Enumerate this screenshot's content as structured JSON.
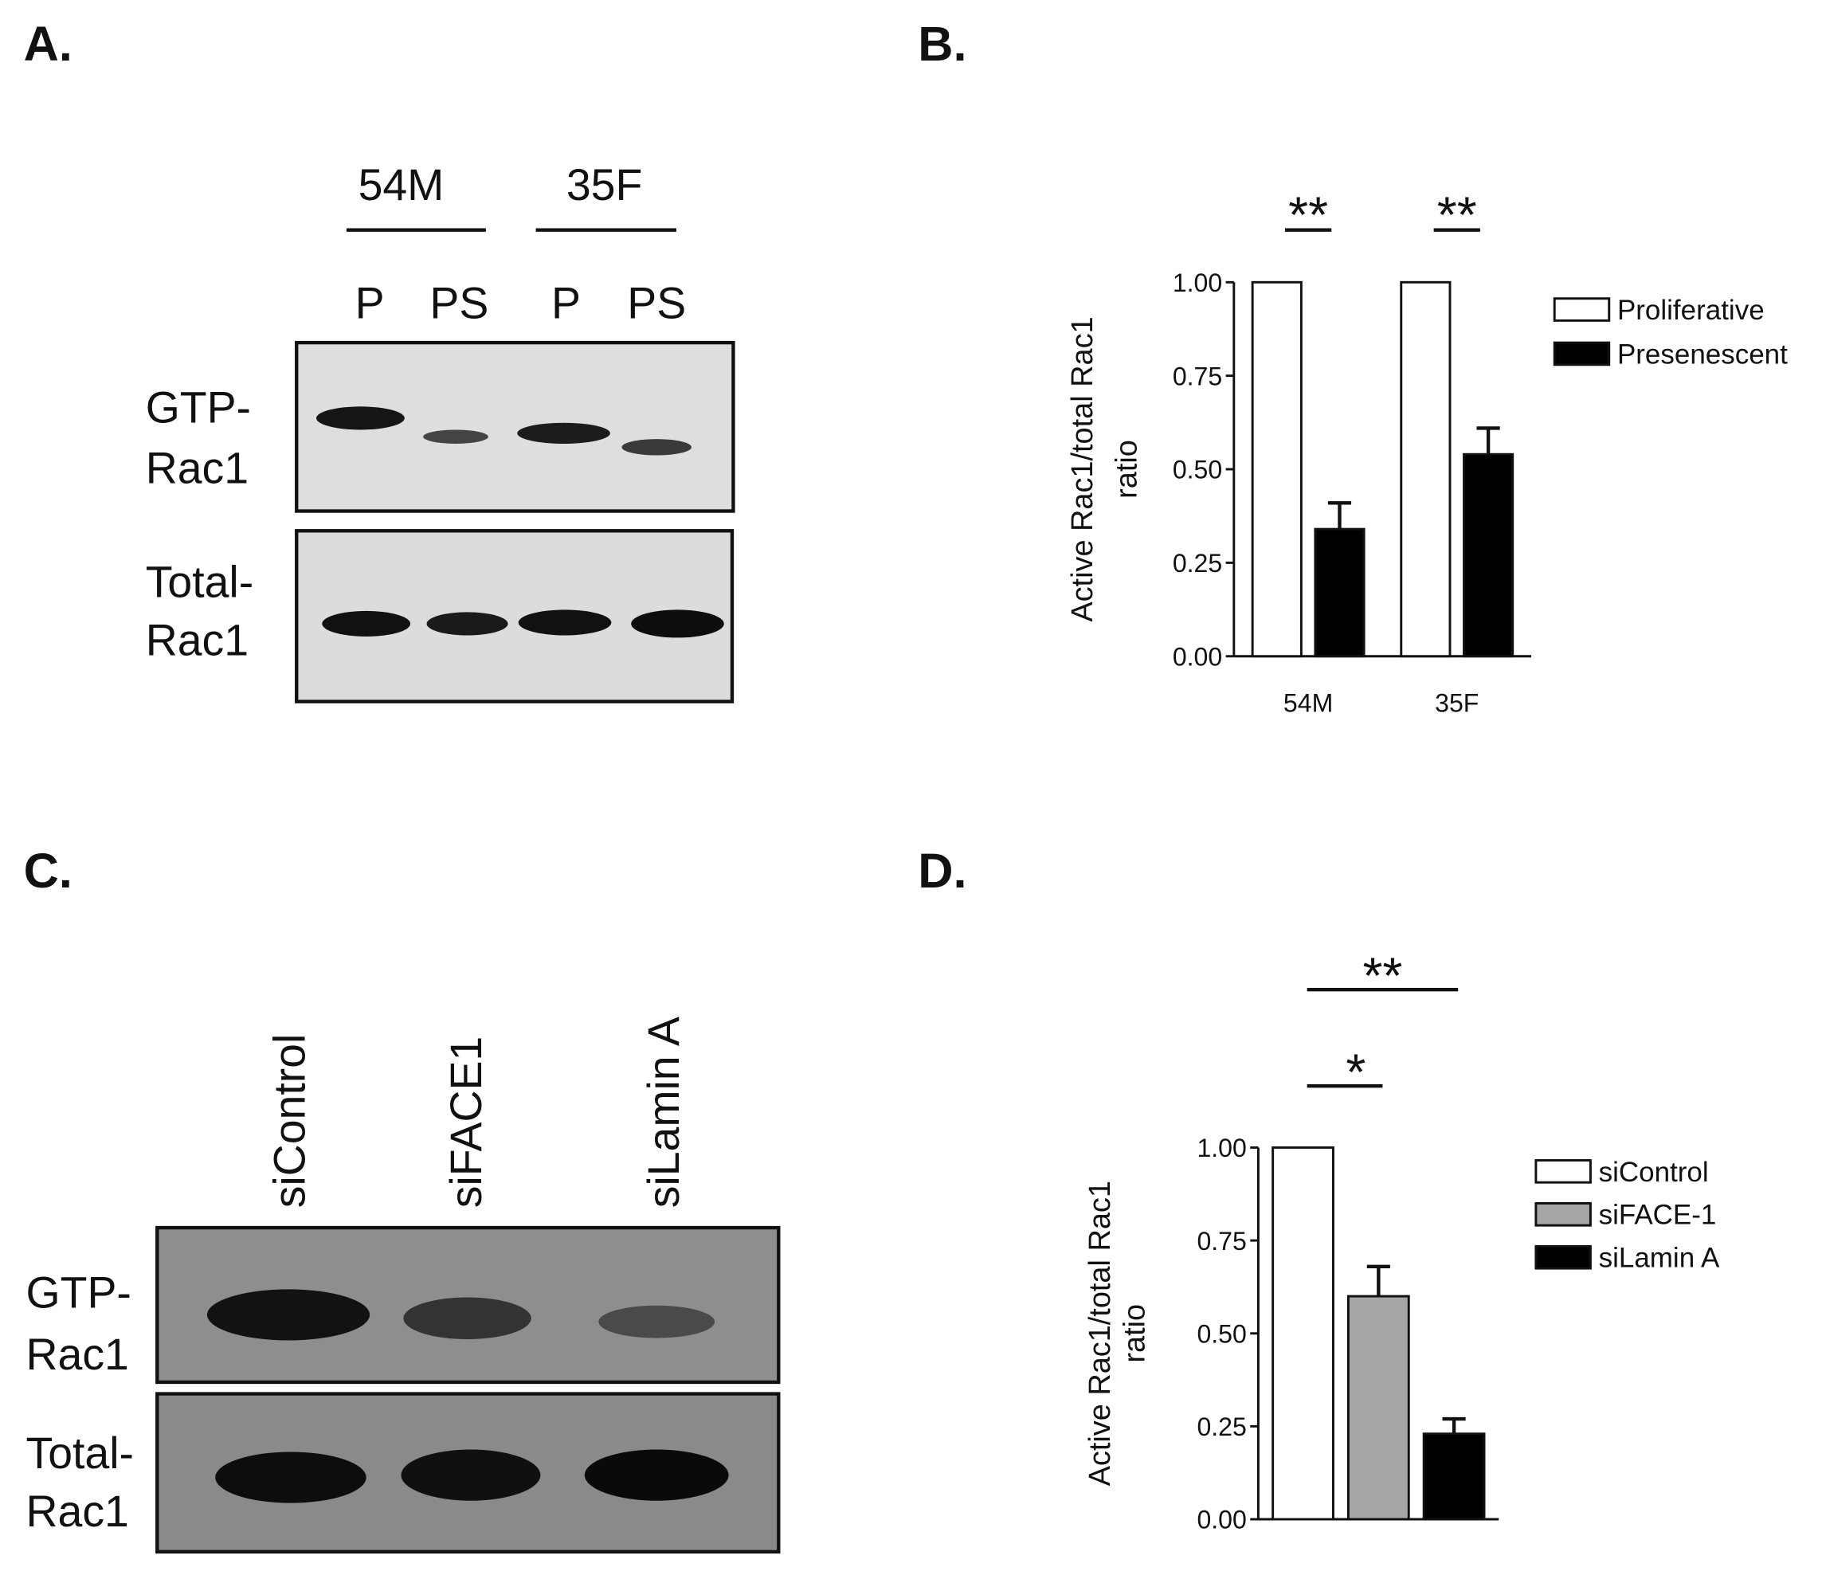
{
  "panel_a": {
    "label": "A.",
    "groups": [
      "54M",
      "35F"
    ],
    "lanes": [
      "P",
      "PS",
      "P",
      "PS"
    ],
    "rows": [
      [
        "GTP-",
        "Rac1"
      ],
      [
        "Total-",
        "Rac1"
      ]
    ]
  },
  "panel_c": {
    "label": "C.",
    "lanes": [
      "siControl",
      "siFACE1",
      "siLamin A"
    ],
    "rows": [
      [
        "GTP-",
        "Rac1"
      ],
      [
        "Total-",
        "Rac1"
      ]
    ]
  },
  "chart_data": [
    {
      "type": "bar",
      "panel_label": "B.",
      "ylabel": [
        "Active Rac1/total Rac1",
        "ratio"
      ],
      "categories": [
        "54M",
        "35F"
      ],
      "series": [
        {
          "name": "Proliferative",
          "color": "#ffffff",
          "values": [
            1.0,
            1.0
          ]
        },
        {
          "name": "Presenescent",
          "color": "#000000",
          "values": [
            0.34,
            0.54
          ],
          "errors": [
            0.07,
            0.07
          ]
        }
      ],
      "ylim": [
        0,
        1
      ],
      "yticks": [
        {
          "value": 0,
          "label": "0.00"
        },
        {
          "value": 0.25,
          "label": "0.25"
        },
        {
          "value": 0.5,
          "label": "0.50"
        },
        {
          "value": 0.75,
          "label": "0.75"
        },
        {
          "value": 1,
          "label": "1.00"
        }
      ],
      "annotations": [
        "**",
        "**"
      ]
    },
    {
      "type": "bar",
      "panel_label": "D.",
      "ylabel": [
        "Active Rac1/total Rac1",
        "ratio"
      ],
      "categories": [
        null
      ],
      "series": [
        {
          "name": "siControl",
          "color": "#ffffff",
          "values": [
            1.0
          ]
        },
        {
          "name": "siFACE-1",
          "color": "#a6a6a8",
          "values": [
            0.6
          ],
          "errors": [
            0.08
          ]
        },
        {
          "name": "siLamin A",
          "color": "#000000",
          "values": [
            0.23
          ],
          "errors": [
            0.04
          ]
        }
      ],
      "ylim": [
        0,
        1
      ],
      "yticks": [
        {
          "value": 0,
          "label": "0.00"
        },
        {
          "value": 0.25,
          "label": "0.25"
        },
        {
          "value": 0.5,
          "label": "0.50"
        },
        {
          "value": 0.75,
          "label": "0.75"
        },
        {
          "value": 1,
          "label": "1.00"
        }
      ],
      "annotations": [
        "**",
        "*"
      ]
    }
  ]
}
